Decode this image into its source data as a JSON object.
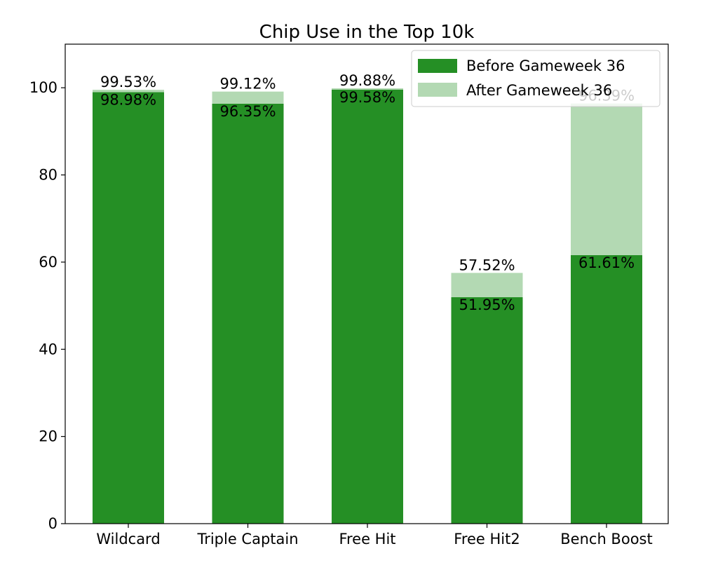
{
  "chart_data": {
    "type": "bar",
    "stacked": true,
    "title": "Chip Use in the Top 10k",
    "xlabel": "",
    "ylabel": "",
    "categories": [
      "Wildcard",
      "Triple Captain",
      "Free Hit",
      "Free Hit2",
      "Bench Boost"
    ],
    "ylim": [
      0,
      110
    ],
    "yticks": [
      0,
      20,
      40,
      60,
      80,
      100
    ],
    "series": [
      {
        "name": "Before Gameweek 36",
        "color": "#258f25",
        "values": [
          98.98,
          96.35,
          99.58,
          51.95,
          61.61
        ],
        "labels": [
          "98.98%",
          "96.35%",
          "99.58%",
          "51.95%",
          "61.61%"
        ]
      },
      {
        "name": "After Gameweek 36",
        "color": "#b3d9b3",
        "totals": [
          99.53,
          99.12,
          99.88,
          57.52,
          96.39
        ],
        "labels": [
          "99.53%",
          "99.12%",
          "99.88%",
          "57.52%",
          "96.39%"
        ]
      }
    ],
    "legend": "top-right",
    "grid": false
  }
}
